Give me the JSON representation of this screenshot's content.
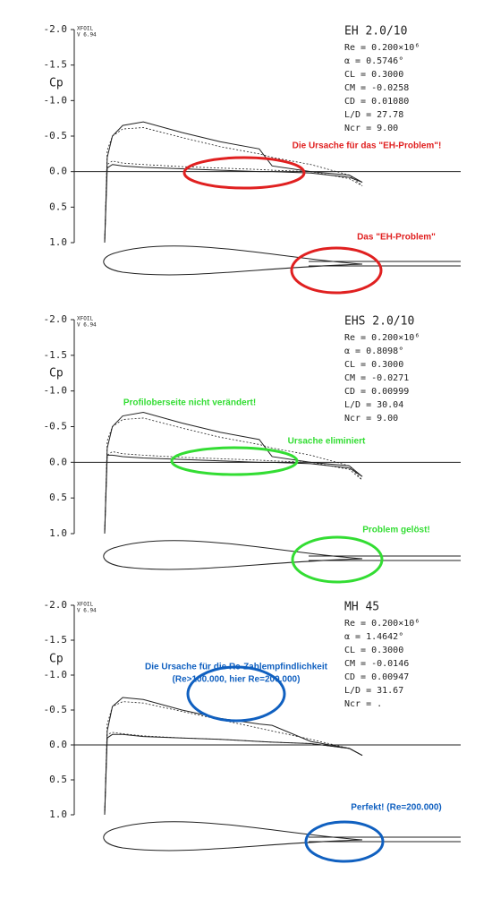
{
  "chart_data": [
    {
      "type": "line",
      "title": "EH 2.0/10",
      "program": "XFOIL",
      "version": "V 6.94",
      "ylabel": "Cp",
      "info": [
        "Re = 0.200×10⁶",
        "α = 0.5746°",
        "CL = 0.3000",
        "CM = -0.0258",
        "CD = 0.01080",
        "L/D = 27.78",
        "Ncr = 9.00"
      ],
      "annotation_color": "#e02020",
      "annotations": [
        "Die Ursache für das \"EH-Problem\"!",
        "Das \"EH-Problem\""
      ],
      "xlim": [
        0,
        1
      ],
      "ylim": [
        -2,
        1
      ],
      "yticks": [
        {
          "value": -2,
          "label": "-2.0"
        },
        -1.5,
        {
          "value": -1,
          "label": "-1.0"
        },
        -0.5,
        {
          "value": 0,
          "label": "0.0"
        },
        0.5,
        {
          "value": 1,
          "label": "1.0"
        }
      ],
      "x": [
        0,
        0.01,
        0.03,
        0.07,
        0.15,
        0.3,
        0.45,
        0.6,
        0.65,
        0.8,
        0.95,
        1.0
      ],
      "series": [
        {
          "color": "#222222",
          "dashed": false,
          "values": [
            1.0,
            -0.2,
            -0.5,
            -0.65,
            -0.7,
            -0.55,
            -0.42,
            -0.32,
            -0.08,
            0.0,
            0.05,
            0.15
          ]
        },
        {
          "color": "#222222",
          "dashed": false,
          "values": [
            1.0,
            -0.05,
            -0.1,
            -0.08,
            -0.06,
            -0.04,
            -0.02,
            0.0,
            0.0,
            0.02,
            0.08,
            0.15
          ]
        },
        {
          "color": "#222222",
          "dashed": true,
          "values": [
            1.0,
            -0.3,
            -0.5,
            -0.6,
            -0.62,
            -0.48,
            -0.35,
            -0.25,
            -0.2,
            -0.1,
            0.05,
            0.2
          ]
        },
        {
          "color": "#222222",
          "dashed": true,
          "values": [
            1.0,
            -0.1,
            -0.15,
            -0.12,
            -0.1,
            -0.07,
            -0.05,
            -0.03,
            -0.02,
            0.0,
            0.1,
            0.2
          ]
        }
      ]
    },
    {
      "type": "line",
      "title": "EHS 2.0/10",
      "program": "XFOIL",
      "version": "V 6.94",
      "ylabel": "Cp",
      "info": [
        "Re = 0.200×10⁶",
        "α = 0.8098°",
        "CL = 0.3000",
        "CM = -0.0271",
        "CD = 0.00999",
        "L/D = 30.04",
        "Ncr = 9.00"
      ],
      "annotation_color": "#33dd33",
      "annotations": [
        "Profiloberseite nicht verändert!",
        "Ursache eliminiert",
        "Problem gelöst!"
      ],
      "xlim": [
        0,
        1
      ],
      "ylim": [
        -2,
        1
      ],
      "yticks": [
        {
          "value": -2,
          "label": "-2.0"
        },
        -1.5,
        {
          "value": -1,
          "label": "-1.0"
        },
        -0.5,
        {
          "value": 0,
          "label": "0.0"
        },
        0.5,
        {
          "value": 1,
          "label": "1.0"
        }
      ],
      "x": [
        0,
        0.01,
        0.03,
        0.07,
        0.15,
        0.3,
        0.45,
        0.6,
        0.65,
        0.8,
        0.95,
        1.0
      ],
      "series": [
        {
          "color": "#222222",
          "dashed": false,
          "values": [
            1.0,
            -0.2,
            -0.5,
            -0.65,
            -0.7,
            -0.55,
            -0.42,
            -0.32,
            -0.08,
            0.0,
            0.05,
            0.2
          ]
        },
        {
          "color": "#222222",
          "dashed": false,
          "values": [
            1.0,
            -0.1,
            -0.1,
            -0.08,
            -0.06,
            -0.04,
            -0.02,
            0.0,
            0.0,
            0.02,
            0.08,
            0.2
          ]
        },
        {
          "color": "#222222",
          "dashed": true,
          "values": [
            1.0,
            -0.3,
            -0.5,
            -0.6,
            -0.62,
            -0.48,
            -0.35,
            -0.25,
            -0.2,
            -0.1,
            0.05,
            0.25
          ]
        },
        {
          "color": "#222222",
          "dashed": true,
          "values": [
            1.0,
            -0.1,
            -0.15,
            -0.12,
            -0.1,
            -0.07,
            -0.05,
            -0.03,
            -0.02,
            0.0,
            0.1,
            0.25
          ]
        }
      ]
    },
    {
      "type": "line",
      "title": "MH 45",
      "program": "XFOIL",
      "version": "V 6.94",
      "ylabel": "Cp",
      "info": [
        "Re = 0.200×10⁶",
        "α = 1.4642°",
        "CL = 0.3000",
        "CM = -0.0146",
        "CD = 0.00947",
        "L/D = 31.67",
        "Ncr = ."
      ],
      "annotation_color": "#1060c0",
      "annotations": [
        "Die Ursache für die Re-Zahlempfindlichkeit",
        "(Re>100.000, hier Re=200.000)",
        "Perfekt! (Re=200.000)"
      ],
      "xlim": [
        0,
        1
      ],
      "ylim": [
        -2,
        1
      ],
      "yticks": [
        {
          "value": -2,
          "label": "-2.0"
        },
        -1.5,
        {
          "value": -1,
          "label": "-1.0"
        },
        -0.5,
        {
          "value": 0,
          "label": "0.0"
        },
        0.5,
        {
          "value": 1,
          "label": "1.0"
        }
      ],
      "x": [
        0,
        0.01,
        0.03,
        0.07,
        0.15,
        0.3,
        0.45,
        0.6,
        0.65,
        0.8,
        0.95,
        1.0
      ],
      "series": [
        {
          "color": "#222222",
          "dashed": false,
          "values": [
            1.0,
            -0.2,
            -0.55,
            -0.68,
            -0.65,
            -0.5,
            -0.38,
            -0.3,
            -0.28,
            -0.05,
            0.05,
            0.15
          ]
        },
        {
          "color": "#222222",
          "dashed": false,
          "values": [
            1.0,
            -0.1,
            -0.15,
            -0.15,
            -0.12,
            -0.1,
            -0.08,
            -0.05,
            -0.04,
            -0.02,
            0.05,
            0.15
          ]
        },
        {
          "color": "#222222",
          "dashed": true,
          "values": [
            1.0,
            -0.3,
            -0.55,
            -0.62,
            -0.6,
            -0.48,
            -0.36,
            -0.24,
            -0.2,
            -0.08,
            0.05,
            0.15
          ]
        },
        {
          "color": "#222222",
          "dashed": true,
          "values": [
            1.0,
            -0.15,
            -0.18,
            -0.16,
            -0.13,
            -0.1,
            -0.08,
            -0.05,
            -0.04,
            -0.02,
            0.05,
            0.15
          ]
        }
      ]
    }
  ]
}
